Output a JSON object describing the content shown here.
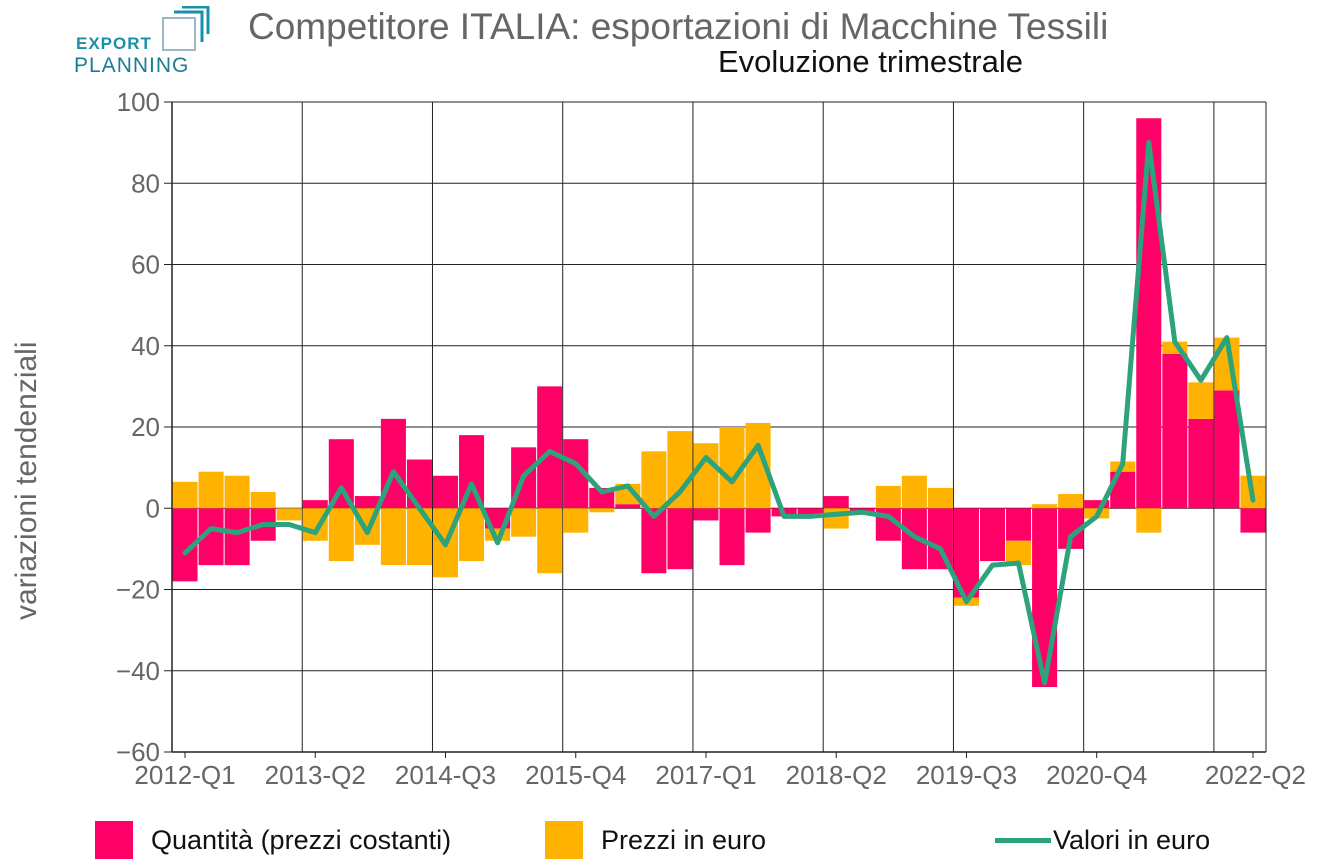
{
  "header": {
    "title": "Competitore ITALIA: esportazioni di Macchine Tessili",
    "subtitle": "Evoluzione trimestrale"
  },
  "logo": {
    "line1": "EXPORT",
    "line2": "PLANNING"
  },
  "colors": {
    "quantita": "#ff0066",
    "prezzi": "#ffb300",
    "valori": "#2ca37a",
    "logo": "#1a8fa8"
  },
  "chart_data": {
    "type": "bar",
    "stacked": true,
    "title": "Competitore ITALIA: esportazioni di Macchine Tessili",
    "subtitle": "Evoluzione trimestrale",
    "ylabel": "variazioni tendenziali",
    "ylim": [
      -60,
      100
    ],
    "yticks": [
      -60,
      -40,
      -20,
      0,
      20,
      40,
      60,
      80,
      100
    ],
    "ytick_labels": [
      "−60",
      "−40",
      "−20",
      "0",
      "20",
      "40",
      "60",
      "80",
      "100"
    ],
    "xtick_labels": [
      "2012-Q1",
      "2013-Q2",
      "2014-Q3",
      "2015-Q4",
      "2017-Q1",
      "2018-Q2",
      "2019-Q3",
      "2020-Q4",
      "2022-Q2"
    ],
    "grid": true,
    "legend_position": "bottom",
    "x": [
      "2012-Q1",
      "2012-Q2",
      "2012-Q3",
      "2012-Q4",
      "2013-Q1",
      "2013-Q2",
      "2013-Q3",
      "2013-Q4",
      "2014-Q1",
      "2014-Q2",
      "2014-Q3",
      "2014-Q4",
      "2015-Q1",
      "2015-Q2",
      "2015-Q3",
      "2015-Q4",
      "2016-Q1",
      "2016-Q2",
      "2016-Q3",
      "2016-Q4",
      "2017-Q1",
      "2017-Q2",
      "2017-Q3",
      "2017-Q4",
      "2018-Q1",
      "2018-Q2",
      "2018-Q3",
      "2018-Q4",
      "2019-Q1",
      "2019-Q2",
      "2019-Q3",
      "2019-Q4",
      "2020-Q1",
      "2020-Q2",
      "2020-Q3",
      "2020-Q4",
      "2021-Q1",
      "2021-Q2",
      "2021-Q3",
      "2021-Q4",
      "2022-Q1",
      "2022-Q2"
    ],
    "series": [
      {
        "name": "Quantità (prezzi costanti)",
        "kind": "bar",
        "color": "#ff0066",
        "values": [
          -18,
          -14,
          -14,
          -8,
          0,
          2,
          17,
          3,
          22,
          12,
          8,
          18,
          -5,
          15,
          30,
          17,
          5,
          1,
          -16,
          -15,
          -3,
          -14,
          -6,
          -2,
          -2,
          3,
          -1,
          -8,
          -15,
          -15,
          -22,
          -13,
          -8,
          -44,
          -10,
          2,
          9,
          96,
          38,
          22,
          29,
          -6
        ]
      },
      {
        "name": "Prezzi in euro",
        "kind": "bar",
        "color": "#ffb300",
        "values": [
          6.5,
          9,
          8,
          4,
          -3,
          -8,
          -13,
          -9,
          -14,
          -14,
          -17,
          -13,
          -3,
          -7,
          -16,
          -6,
          -1,
          5,
          14,
          19,
          16,
          20,
          21,
          0,
          0,
          -5,
          0,
          5.5,
          8,
          5,
          -2,
          0,
          -6,
          1,
          3.5,
          -2.5,
          2.5,
          -6,
          3,
          9,
          13,
          8
        ]
      },
      {
        "name": "Valori in euro",
        "kind": "line",
        "color": "#2ca37a",
        "values": [
          -11,
          -5,
          -6,
          -4,
          -4,
          -6,
          5,
          -6,
          9,
          0,
          -9,
          6,
          -8.5,
          8,
          14,
          11,
          4,
          5.5,
          -2,
          4,
          12.5,
          6.5,
          15.5,
          -2,
          -2,
          -1.5,
          -1,
          -2,
          -7,
          -10,
          -23,
          -14,
          -13.5,
          -43,
          -7,
          -2,
          11,
          90,
          41,
          31.5,
          42,
          2
        ]
      }
    ]
  }
}
